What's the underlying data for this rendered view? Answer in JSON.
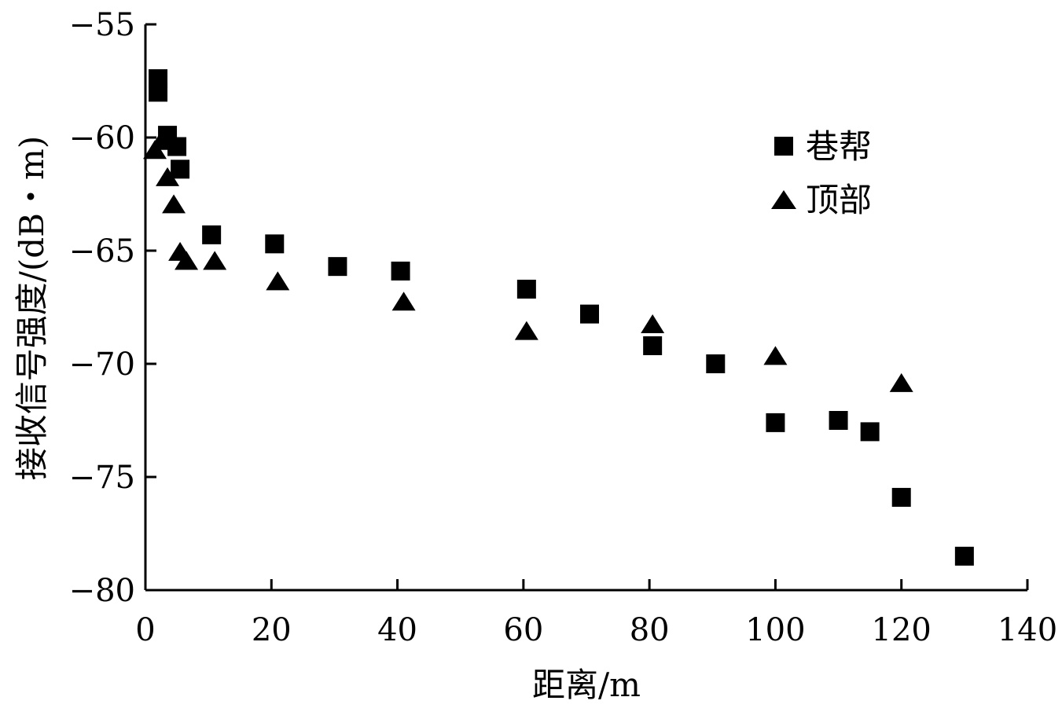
{
  "chart_data": {
    "type": "scatter",
    "title": "",
    "xlabel": "距离/m",
    "ylabel": "接收信号强度/(dB・m)",
    "xlim": [
      0,
      140
    ],
    "ylim": [
      -80,
      -55
    ],
    "x_ticks": [
      "0",
      "20",
      "40",
      "60",
      "80",
      "100",
      "120",
      "140"
    ],
    "y_ticks": [
      "-55",
      "-60",
      "-65",
      "-70",
      "-75",
      "-80"
    ],
    "grid": false,
    "legend_position": "top-right",
    "series": [
      {
        "name": "巷帮",
        "marker": "square",
        "color": "#000000",
        "points": [
          {
            "x": 2,
            "y": -57.4
          },
          {
            "x": 2,
            "y": -58.0
          },
          {
            "x": 3.5,
            "y": -59.9
          },
          {
            "x": 5,
            "y": -60.4
          },
          {
            "x": 5.5,
            "y": -61.4
          },
          {
            "x": 10.5,
            "y": -64.3
          },
          {
            "x": 20.5,
            "y": -64.7
          },
          {
            "x": 30.5,
            "y": -65.7
          },
          {
            "x": 40.5,
            "y": -65.9
          },
          {
            "x": 60.5,
            "y": -66.7
          },
          {
            "x": 70.5,
            "y": -67.8
          },
          {
            "x": 80.5,
            "y": -69.2
          },
          {
            "x": 90.5,
            "y": -70.0
          },
          {
            "x": 100,
            "y": -72.6
          },
          {
            "x": 110,
            "y": -72.5
          },
          {
            "x": 115,
            "y": -73.0
          },
          {
            "x": 120,
            "y": -75.9
          },
          {
            "x": 130,
            "y": -78.5
          }
        ]
      },
      {
        "name": "顶部",
        "marker": "triangle",
        "color": "#000000",
        "points": [
          {
            "x": 1.5,
            "y": -60.6
          },
          {
            "x": 2.5,
            "y": -60.2
          },
          {
            "x": 3.5,
            "y": -61.8
          },
          {
            "x": 4.5,
            "y": -63.0
          },
          {
            "x": 5.5,
            "y": -65.1
          },
          {
            "x": 6.5,
            "y": -65.5
          },
          {
            "x": 11,
            "y": -65.5
          },
          {
            "x": 21,
            "y": -66.4
          },
          {
            "x": 41,
            "y": -67.3
          },
          {
            "x": 60.5,
            "y": -68.6
          },
          {
            "x": 80.5,
            "y": -68.3
          },
          {
            "x": 100,
            "y": -69.7
          },
          {
            "x": 120,
            "y": -70.9
          }
        ]
      }
    ]
  }
}
